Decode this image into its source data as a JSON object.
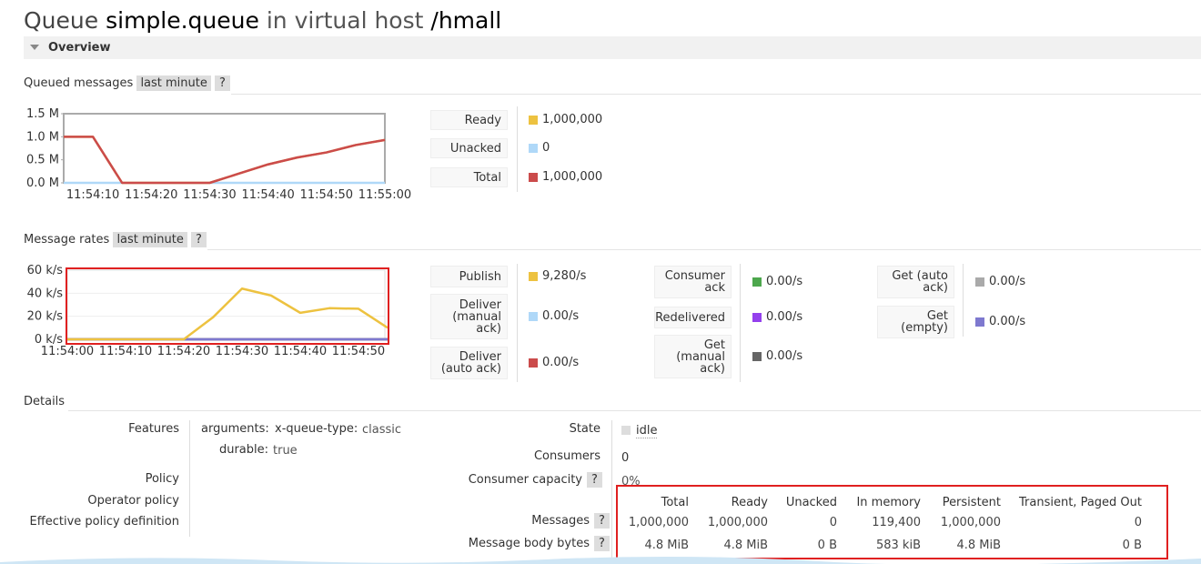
{
  "header": {
    "prefix": "Queue",
    "name": "simple.queue",
    "middle": "in virtual host",
    "vhost": "/hmall"
  },
  "overview": "Overview",
  "queued_section": {
    "label": "Queued messages",
    "range": "last minute",
    "help": "?"
  },
  "rates_section": {
    "label": "Message rates",
    "range": "last minute",
    "help": "?"
  },
  "chart_data": [
    {
      "type": "line",
      "categories": [
        null,
        "11:54:10",
        null,
        "11:54:20",
        null,
        "11:54:30",
        null,
        "11:54:40",
        null,
        "11:54:50",
        null,
        "11:55:00"
      ],
      "ylim": [
        0,
        1.5
      ],
      "yticks": [
        {
          "value": 0,
          "label": "0.0 M"
        },
        {
          "value": 0.5,
          "label": "0.5 M"
        },
        {
          "value": 1,
          "label": "1.0 M"
        },
        {
          "value": 1.5,
          "label": "1.5 M"
        }
      ],
      "grid": false,
      "series": [
        {
          "name": "Ready",
          "color": "#edc240",
          "current": "1,000,000",
          "values": [
            1,
            1,
            0,
            0,
            0,
            0,
            0.2,
            0.4,
            0.55,
            0.66,
            0.82,
            0.93
          ]
        },
        {
          "name": "Unacked",
          "color": "#afd8f8",
          "current": "0",
          "values": [
            0,
            0,
            0,
            0,
            0,
            0,
            0,
            0,
            0,
            0,
            0,
            0
          ]
        },
        {
          "name": "Total",
          "color": "#cb4b4b",
          "current": "1,000,000",
          "values": [
            1,
            1,
            0,
            0,
            0,
            0,
            0.2,
            0.4,
            0.55,
            0.66,
            0.82,
            0.93
          ]
        }
      ]
    },
    {
      "type": "line",
      "categories": [
        "11:54:00",
        null,
        "11:54:10",
        null,
        "11:54:20",
        null,
        "11:54:30",
        null,
        "11:54:40",
        null,
        "11:54:50",
        null
      ],
      "ylim": [
        0,
        60
      ],
      "yticks": [
        {
          "value": 0,
          "label": "0 k/s"
        },
        {
          "value": 20,
          "label": "20 k/s"
        },
        {
          "value": 40,
          "label": "40 k/s"
        },
        {
          "value": 60,
          "label": "60 k/s"
        }
      ],
      "grid": true,
      "series": [
        {
          "name": "Publish",
          "color": "#edc240",
          "current": "9,280/s",
          "values": [
            0,
            0,
            0,
            0,
            0,
            19,
            44,
            38,
            23,
            27,
            26.5,
            10
          ]
        },
        {
          "name": "Deliver (manual ack)",
          "color": "#afd8f8",
          "current": "0.00/s",
          "values": [
            0,
            0,
            0,
            0,
            0,
            0,
            0,
            0,
            0,
            0,
            0,
            0
          ]
        },
        {
          "name": "Deliver (auto ack)",
          "color": "#cb4b4b",
          "current": "0.00/s",
          "values": [
            0,
            0,
            0,
            0,
            0,
            0,
            0,
            0,
            0,
            0,
            0,
            0
          ]
        },
        {
          "name": "Consumer ack",
          "color": "#4da74d",
          "current": "0.00/s",
          "values": [
            0,
            0,
            0,
            0,
            0,
            0,
            0,
            0,
            0,
            0,
            0,
            0
          ]
        },
        {
          "name": "Redelivered",
          "color": "#9440ed",
          "current": "0.00/s",
          "values": [
            0,
            0,
            0,
            0,
            0,
            0,
            0,
            0,
            0,
            0,
            0,
            0
          ]
        },
        {
          "name": "Get (manual ack)",
          "color": "#666666",
          "current": "0.00/s",
          "values": [
            0,
            0,
            0,
            0,
            0,
            0,
            0,
            0,
            0,
            0,
            0,
            0
          ]
        },
        {
          "name": "Get (auto ack)",
          "color": "#aaaaaa",
          "current": "0.00/s",
          "values": [
            0,
            0,
            0,
            0,
            0,
            0,
            0,
            0,
            0,
            0,
            0,
            0
          ]
        },
        {
          "name": "Get (empty)",
          "color": "#7e79cf",
          "current": "0.00/s",
          "values": [
            0,
            0,
            0,
            0,
            0,
            0,
            0,
            0,
            0,
            0,
            0,
            0
          ]
        }
      ]
    }
  ],
  "details": {
    "label": "Details",
    "features_label": "Features",
    "arguments_label": "arguments:",
    "queue_type_key": "x-queue-type:",
    "queue_type": "classic",
    "durable_label": "durable:",
    "durable": "true",
    "policy": "Policy",
    "operator_policy": "Operator policy",
    "effective_policy": "Effective policy definition",
    "state_label": "State",
    "state": "idle",
    "consumers_label": "Consumers",
    "consumers": "0",
    "capacity_label": "Consumer capacity",
    "capacity_help": "?",
    "capacity": "0%"
  },
  "messages_table": {
    "columns": [
      "Total",
      "Ready",
      "Unacked",
      "In memory",
      "Persistent",
      "Transient, Paged Out"
    ],
    "rows": [
      {
        "label": "Messages",
        "help": "?",
        "cells": [
          "1,000,000",
          "1,000,000",
          "0",
          "119,400",
          "1,000,000",
          "0"
        ]
      },
      {
        "label": "Message body bytes",
        "help": "?",
        "cells": [
          "4.8 MiB",
          "4.8 MiB",
          "0 B",
          "583 kiB",
          "4.8 MiB",
          "0 B"
        ]
      }
    ]
  }
}
